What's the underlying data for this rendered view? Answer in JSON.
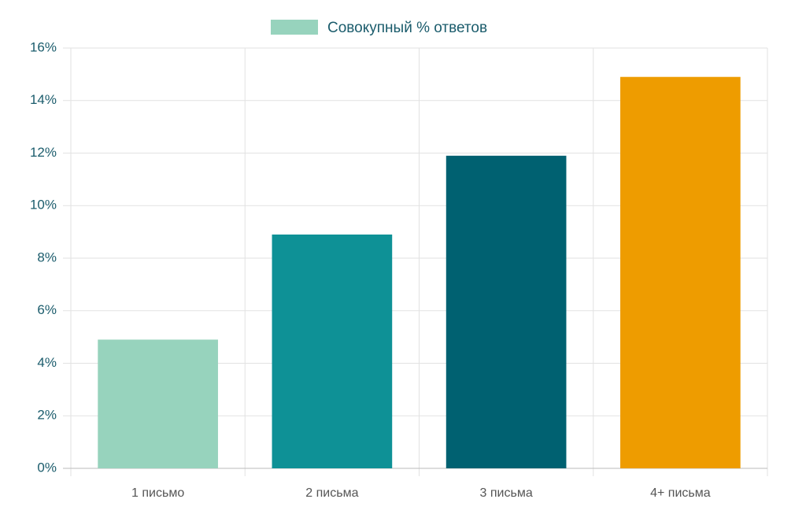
{
  "chart_data": {
    "type": "bar",
    "categories": [
      "1 письмо",
      "2 письма",
      "3 письма",
      "4+ письма"
    ],
    "series": [
      {
        "name": "Совокупный % ответов",
        "values": [
          4.9,
          8.9,
          11.9,
          14.9
        ],
        "colors": [
          "#97d3bd",
          "#0e9196",
          "#006171",
          "#ee9c00"
        ]
      }
    ],
    "ylim": [
      0,
      16
    ],
    "yticks": [
      {
        "value": 0,
        "label": "0%"
      },
      {
        "value": 2,
        "label": "2%"
      },
      {
        "value": 4,
        "label": "4%"
      },
      {
        "value": 6,
        "label": "6%"
      },
      {
        "value": 8,
        "label": "8%"
      },
      {
        "value": 10,
        "label": "10%"
      },
      {
        "value": 12,
        "label": "12%"
      },
      {
        "value": 14,
        "label": "14%"
      },
      {
        "value": 16,
        "label": "16%"
      }
    ],
    "grid": true
  }
}
